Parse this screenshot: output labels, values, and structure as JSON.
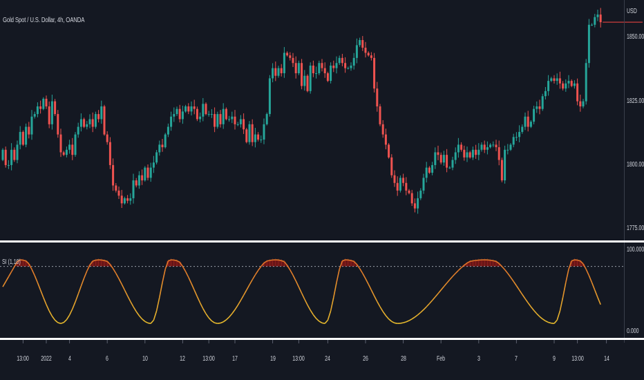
{
  "header": {
    "symbol_title": "Gold Spot / U.S. Dollar, 4h, OANDA"
  },
  "indicator": {
    "title": "SI (1,10)"
  },
  "colors": {
    "background": "#141822",
    "candle_up": "#26a69a",
    "candle_down": "#ef5350",
    "osc_high": "#e2762a",
    "osc_low": "#e8c52e",
    "zone_fill": "#6d1616",
    "zone_stroke": "#b12a2a",
    "separator": "#ffffff",
    "price_marker": "#b03838"
  },
  "chart_data": [
    {
      "type": "candlestick",
      "title": "Gold Spot / U.S. Dollar, 4h, OANDA",
      "ylim": [
        1771,
        1862
      ],
      "y_ticks": [
        {
          "value": 1860,
          "label": "USD"
        },
        {
          "value": 1850,
          "label": "1850.000"
        },
        {
          "value": 1825,
          "label": "1825.000"
        },
        {
          "value": 1800,
          "label": "1800.000"
        },
        {
          "value": 1775,
          "label": "1775.000"
        }
      ],
      "last_price": 1856,
      "closes": [
        1806,
        1800,
        1800,
        1806,
        1802,
        1808,
        1813,
        1808,
        1815,
        1812,
        1819,
        1820,
        1823,
        1822,
        1826,
        1823,
        1816,
        1825,
        1820,
        1812,
        1805,
        1804,
        1806,
        1808,
        1804,
        1812,
        1815,
        1818,
        1815,
        1816,
        1818,
        1815,
        1820,
        1818,
        1823,
        1812,
        1809,
        1800,
        1792,
        1790,
        1788,
        1785,
        1787,
        1786,
        1787,
        1794,
        1792,
        1796,
        1794,
        1799,
        1795,
        1799,
        1801,
        1805,
        1808,
        1807,
        1812,
        1815,
        1819,
        1820,
        1822,
        1818,
        1821,
        1823,
        1821,
        1823,
        1822,
        1818,
        1819,
        1824,
        1820,
        1820,
        1820,
        1815,
        1820,
        1816,
        1822,
        1818,
        1818,
        1819,
        1816,
        1816,
        1818,
        1814,
        1809,
        1816,
        1809,
        1812,
        1810,
        1810,
        1816,
        1820,
        1834,
        1838,
        1835,
        1838,
        1836,
        1844,
        1843,
        1842,
        1840,
        1836,
        1840,
        1831,
        1835,
        1829,
        1839,
        1836,
        1836,
        1840,
        1838,
        1836,
        1833,
        1839,
        1838,
        1840,
        1842,
        1840,
        1838,
        1838,
        1839,
        1842,
        1847,
        1849,
        1846,
        1844,
        1843,
        1842,
        1830,
        1823,
        1816,
        1812,
        1808,
        1803,
        1796,
        1793,
        1790,
        1795,
        1793,
        1790,
        1789,
        1785,
        1783,
        1787,
        1790,
        1795,
        1799,
        1797,
        1800,
        1805,
        1804,
        1801,
        1804,
        1799,
        1799,
        1802,
        1805,
        1808,
        1806,
        1803,
        1805,
        1803,
        1806,
        1804,
        1806,
        1808,
        1806,
        1807,
        1808,
        1808,
        1807,
        1802,
        1794,
        1806,
        1806,
        1808,
        1811,
        1811,
        1813,
        1815,
        1819,
        1815,
        1817,
        1822,
        1823,
        1822,
        1827,
        1829,
        1833,
        1834,
        1833,
        1834,
        1832,
        1830,
        1832,
        1833,
        1831,
        1832,
        1825,
        1823,
        1825,
        1840,
        1855,
        1855,
        1858,
        1859,
        1856
      ],
      "oscillator": {
        "name": "SI (1,10)",
        "ylim": [
          0,
          100
        ],
        "y_ticks": [
          {
            "value": 100,
            "label": "100.000"
          },
          {
            "value": 0,
            "label": "0.000"
          }
        ],
        "reference_level": 80,
        "cycles": [
          {
            "bars": [
              0,
              20
            ],
            "peak_bar": 6
          },
          {
            "bars": [
              20,
              51
            ],
            "peak_bar": 33
          },
          {
            "bars": [
              51,
              74
            ],
            "peak_bar": 58
          },
          {
            "bars": [
              74,
              111
            ],
            "peak_bar": 94
          },
          {
            "bars": [
              111,
              136
            ],
            "peak_bar": 118
          },
          {
            "bars": [
              136,
              190
            ],
            "peak_bar": 166
          },
          {
            "bars": [
              190,
              211
            ],
            "peak_bar": 197
          }
        ]
      },
      "x_ticks": [
        {
          "bar": 7,
          "label": "13:00"
        },
        {
          "bar": 15,
          "label": "2022"
        },
        {
          "bar": 23,
          "label": "4"
        },
        {
          "bar": 36,
          "label": "6"
        },
        {
          "bar": 49,
          "label": "10"
        },
        {
          "bar": 62,
          "label": "12"
        },
        {
          "bar": 71,
          "label": "13:00"
        },
        {
          "bar": 80,
          "label": "17"
        },
        {
          "bar": 93,
          "label": "19"
        },
        {
          "bar": 102,
          "label": "13:00"
        },
        {
          "bar": 112,
          "label": "24"
        },
        {
          "bar": 125,
          "label": "26"
        },
        {
          "bar": 138,
          "label": "28"
        },
        {
          "bar": 151,
          "label": "Feb"
        },
        {
          "bar": 164,
          "label": "3"
        },
        {
          "bar": 177,
          "label": "7"
        },
        {
          "bar": 190,
          "label": "9"
        },
        {
          "bar": 198,
          "label": "13:00"
        },
        {
          "bar": 208,
          "label": "14"
        }
      ]
    }
  ]
}
